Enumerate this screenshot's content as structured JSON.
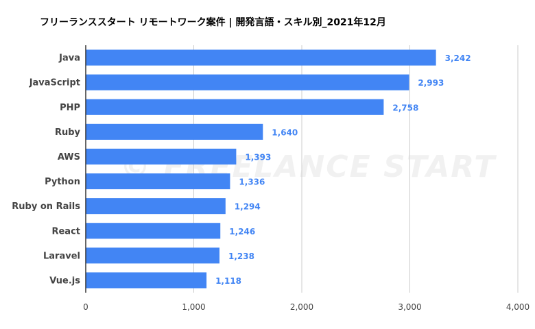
{
  "chart_data": {
    "type": "bar",
    "orientation": "horizontal",
    "title": "フリーランススタート リモートワーク案件 | 開発言語・スキル別_2021年12月",
    "categories": [
      "Java",
      "JavaScript",
      "PHP",
      "Ruby",
      "AWS",
      "Python",
      "Ruby on Rails",
      "React",
      "Laravel",
      "Vue.js"
    ],
    "values": [
      3242,
      2993,
      2758,
      1640,
      1393,
      1336,
      1294,
      1246,
      1238,
      1118
    ],
    "value_labels": [
      "3,242",
      "2,993",
      "2,758",
      "1,640",
      "1,393",
      "1,336",
      "1,294",
      "1,246",
      "1,238",
      "1,118"
    ],
    "x_ticks": [
      0,
      1000,
      2000,
      3000,
      4000
    ],
    "x_tick_labels": [
      "0",
      "1,000",
      "2,000",
      "3,000",
      "4,000"
    ],
    "xlim": [
      0,
      4000
    ],
    "xlabel": "",
    "ylabel": "",
    "grid": true,
    "watermark": "© FREELANCE START",
    "colors": {
      "bar": "#4285f4",
      "value_label": "#4285f4",
      "grid": "#cccccc",
      "axis": "#333333"
    }
  }
}
